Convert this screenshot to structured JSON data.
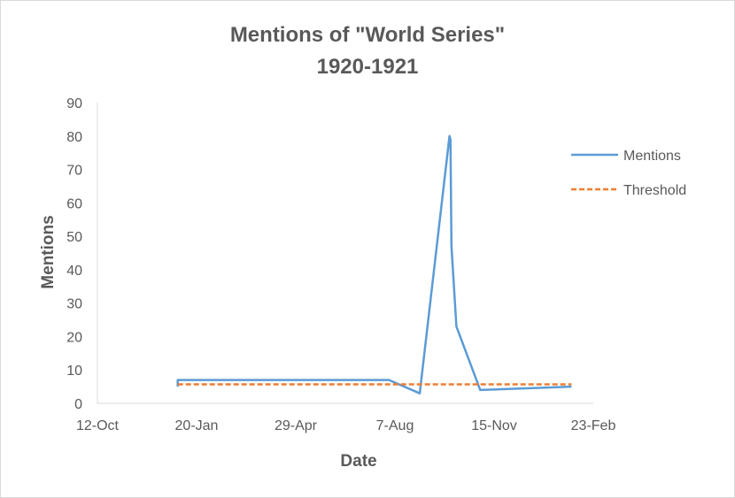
{
  "chart_data": {
    "type": "line",
    "title": "Mentions of \"World Series\"",
    "subtitle": "1920-1921",
    "xlabel": "Date",
    "ylabel": "Mentions",
    "ylim": [
      0,
      90
    ],
    "yticks": [
      0,
      10,
      20,
      30,
      40,
      50,
      60,
      70,
      80,
      90
    ],
    "xlim": [
      "1919-10-12",
      "1921-02-23"
    ],
    "xticks": [
      {
        "date": "1919-10-12",
        "label": "12-Oct"
      },
      {
        "date": "1920-01-20",
        "label": "20-Jan"
      },
      {
        "date": "1920-04-29",
        "label": "29-Apr"
      },
      {
        "date": "1920-08-07",
        "label": "7-Aug"
      },
      {
        "date": "1920-11-15",
        "label": "15-Nov"
      },
      {
        "date": "1921-02-23",
        "label": "23-Feb"
      }
    ],
    "grid": false,
    "legend_position": "right",
    "series": [
      {
        "name": "Mentions",
        "color": "#5b9bd5",
        "style": "solid",
        "points": [
          {
            "x": "1920-01-01",
            "y": 5
          },
          {
            "x": "1920-01-01",
            "y": 7
          },
          {
            "x": "1920-08-01",
            "y": 7
          },
          {
            "x": "1920-09-01",
            "y": 3
          },
          {
            "x": "1920-10-01",
            "y": 80
          },
          {
            "x": "1920-10-02",
            "y": 79
          },
          {
            "x": "1920-10-03",
            "y": 47
          },
          {
            "x": "1920-10-08",
            "y": 23
          },
          {
            "x": "1920-11-01",
            "y": 4
          },
          {
            "x": "1921-02-01",
            "y": 5
          }
        ]
      },
      {
        "name": "Threshold",
        "color": "#ed7d31",
        "style": "dashed",
        "points": [
          {
            "x": "1920-01-01",
            "y": 5.7
          },
          {
            "x": "1921-02-01",
            "y": 5.7
          }
        ]
      }
    ]
  }
}
